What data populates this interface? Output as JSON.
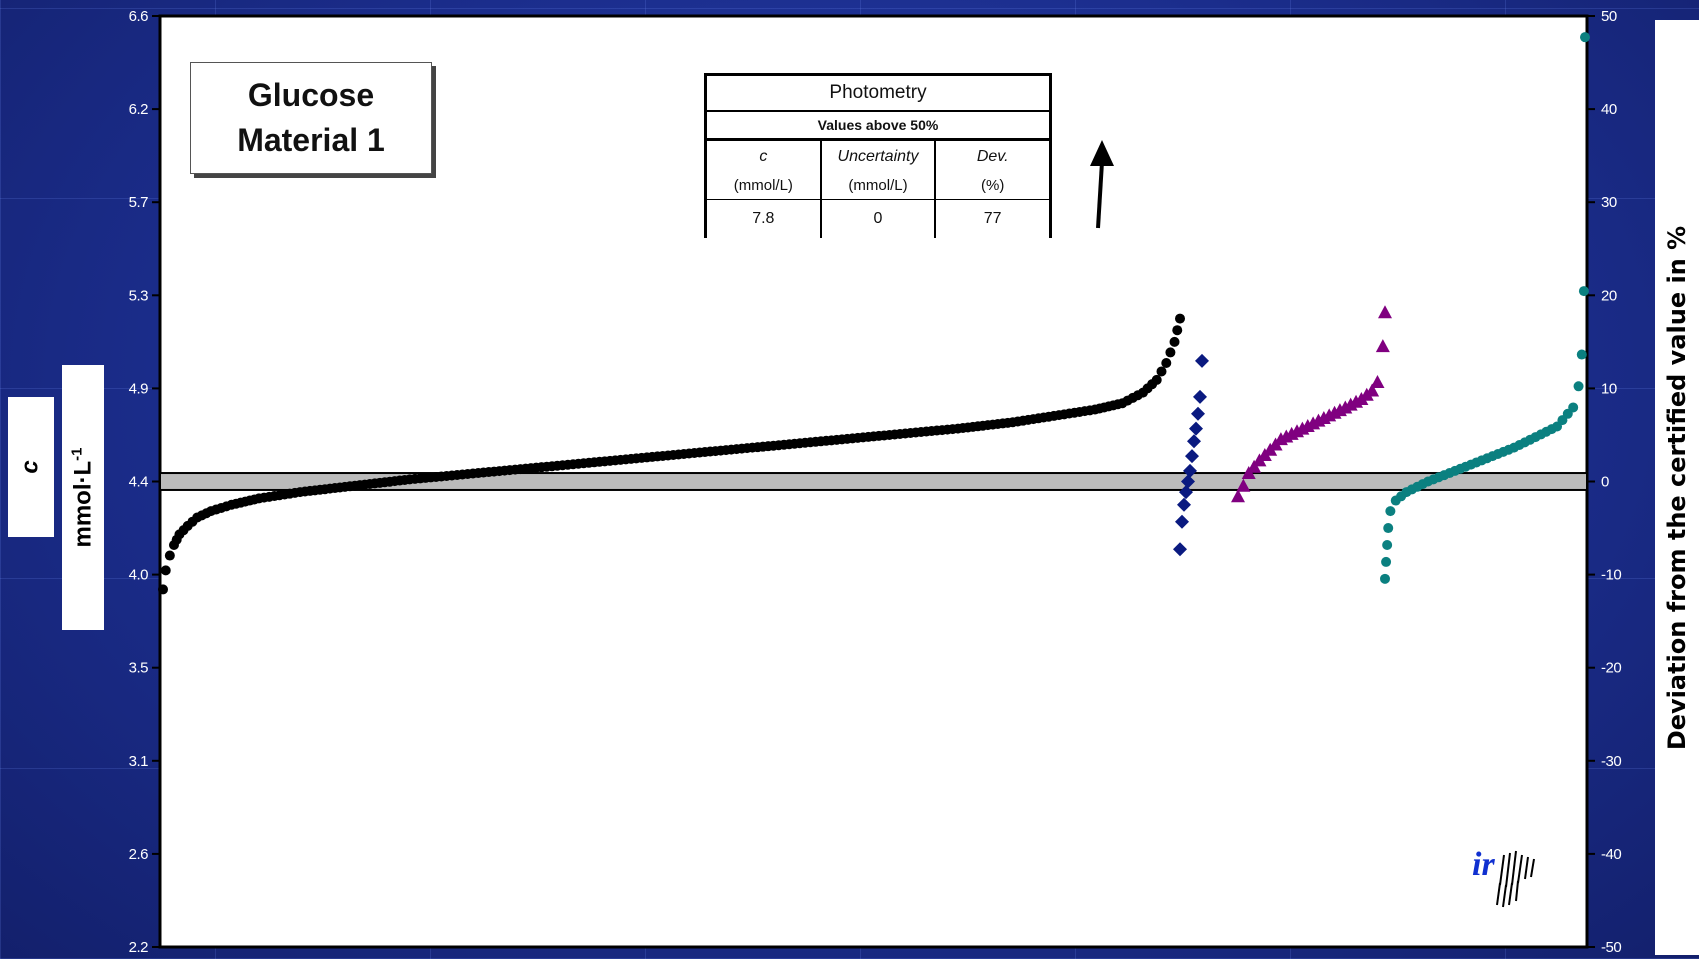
{
  "title_box": {
    "line1": "Glucose",
    "line2": "Material 1"
  },
  "table": {
    "header": "Photometry",
    "subheader": "Values above 50%",
    "columns": [
      "c",
      "Uncertainty",
      "Dev."
    ],
    "units": [
      "(mmol/L)",
      "(mmol/L)",
      "(%)"
    ],
    "values": [
      "7.8",
      "0",
      "77"
    ]
  },
  "left_axis_label": {
    "c": "c",
    "unit": "mmol·L",
    "exp": "-1"
  },
  "right_axis_label": "Deviation from the certified value in %",
  "colors": {
    "background": "#1b2d8c",
    "series_black": "#000000",
    "series_navy": "#0a1a80",
    "series_purple": "#800080",
    "series_teal": "#0b8080",
    "band": "#bbbbbb"
  },
  "chart_data": {
    "type": "scatter",
    "y_left": {
      "ticks": [
        "6.6",
        "6.2",
        "5.7",
        "5.3",
        "4.9",
        "4.4",
        "4.0",
        "3.5",
        "3.1",
        "2.6",
        "2.2"
      ],
      "lim": [
        2.2,
        6.6
      ]
    },
    "y_right": {
      "ticks": [
        "50",
        "40",
        "30",
        "20",
        "10",
        "0",
        "-10",
        "-20",
        "-30",
        "-40",
        "-50"
      ],
      "lim": [
        -50,
        50
      ]
    },
    "certified_value": 4.4,
    "certified_band": [
      4.36,
      4.44
    ],
    "arrow_note": "values above range (upward arrow)",
    "series": [
      {
        "marker": "circle",
        "color": "#000000",
        "x": [
          0,
          2,
          5,
          8,
          12,
          18,
          25,
          35,
          50,
          70,
          100,
          140,
          180,
          230,
          280,
          330,
          380,
          430,
          480,
          530,
          580,
          620,
          650,
          680,
          700,
          715,
          725,
          732,
          738,
          742
        ],
        "y": [
          3.89,
          3.98,
          4.05,
          4.1,
          4.15,
          4.19,
          4.23,
          4.26,
          4.29,
          4.32,
          4.35,
          4.38,
          4.41,
          4.44,
          4.47,
          4.5,
          4.53,
          4.56,
          4.59,
          4.62,
          4.65,
          4.68,
          4.71,
          4.74,
          4.77,
          4.82,
          4.88,
          4.96,
          5.06,
          5.17
        ]
      },
      {
        "marker": "diamond",
        "color": "#0a1a80",
        "x": [
          0,
          1,
          2,
          3,
          4,
          5,
          6,
          7,
          8,
          9,
          10,
          11
        ],
        "y": [
          4.08,
          4.21,
          4.29,
          4.35,
          4.4,
          4.45,
          4.52,
          4.59,
          4.65,
          4.72,
          4.8,
          4.97
        ]
      },
      {
        "marker": "triangle",
        "color": "#800080",
        "x": [
          0,
          5,
          10,
          20,
          30,
          40,
          60,
          80,
          100,
          115,
          125,
          130,
          135,
          137
        ],
        "y": [
          4.33,
          4.38,
          4.44,
          4.5,
          4.55,
          4.6,
          4.65,
          4.7,
          4.75,
          4.79,
          4.83,
          4.87,
          5.04,
          5.2
        ]
      },
      {
        "marker": "circle",
        "color": "#0b8080",
        "x": [
          0,
          1,
          2,
          3,
          5,
          10,
          20,
          40,
          60,
          80,
          100,
          120,
          140,
          160,
          175,
          180,
          183,
          185,
          186
        ],
        "y": [
          3.94,
          4.02,
          4.1,
          4.18,
          4.26,
          4.31,
          4.35,
          4.4,
          4.44,
          4.48,
          4.52,
          4.56,
          4.61,
          4.66,
          4.75,
          4.85,
          5.0,
          5.3,
          6.5
        ]
      }
    ]
  }
}
